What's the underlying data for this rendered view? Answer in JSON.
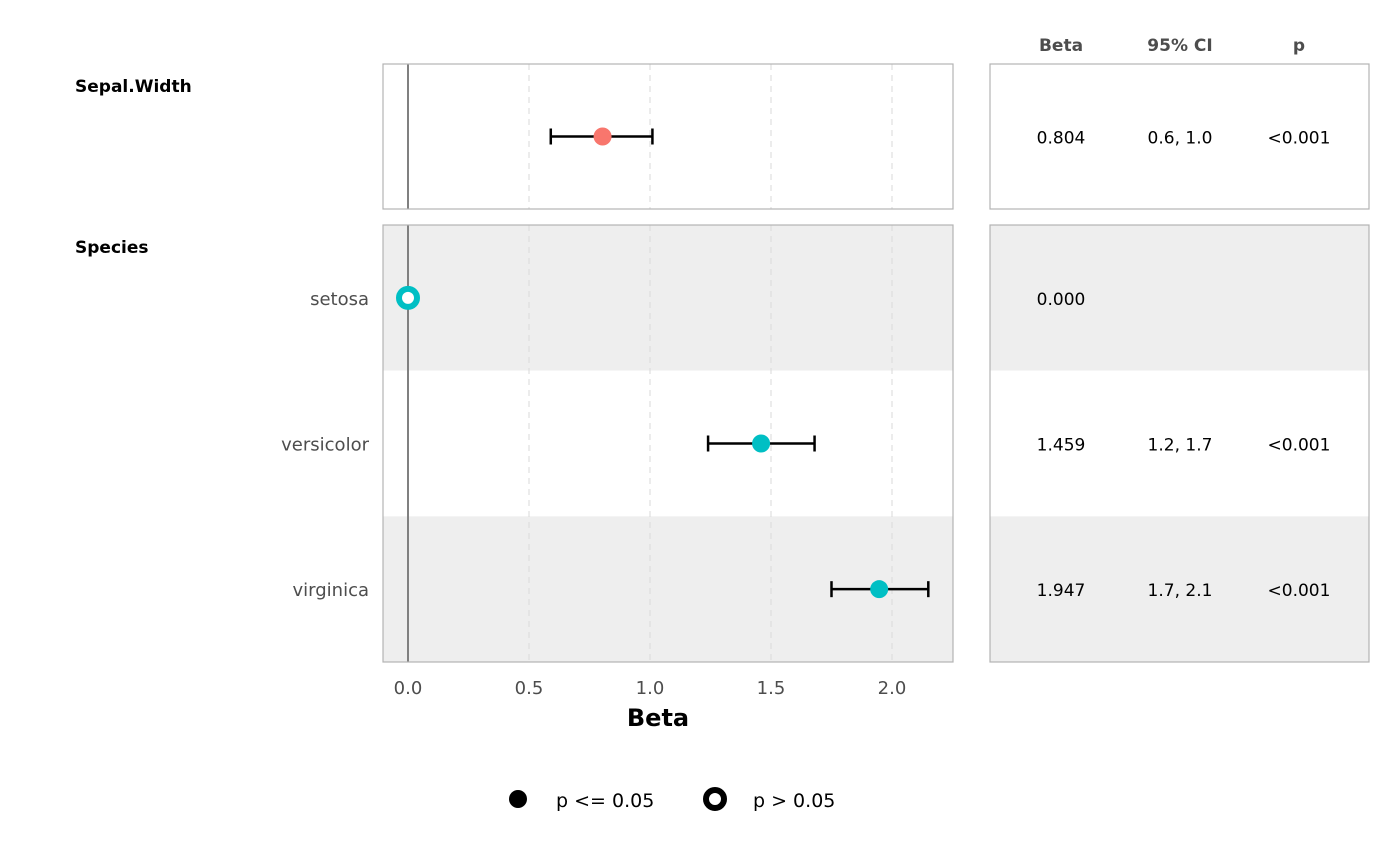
{
  "chart_data": {
    "type": "forest",
    "xlabel": "Beta",
    "xlim": [
      -0.1,
      2.25
    ],
    "xticks": [
      0.0,
      0.5,
      1.0,
      1.5,
      2.0
    ],
    "xtick_labels": [
      "0.0",
      "0.5",
      "1.0",
      "1.5",
      "2.0"
    ],
    "reference_line": 0,
    "grid": "vertical dashed",
    "colors": {
      "Sepal.Width": "#F8766D",
      "Species": "#00BFC4",
      "stripe": "#EEEEEE",
      "border": "#B3B3B3"
    },
    "groups": [
      {
        "name": "Sepal.Width",
        "rows": [
          {
            "label": "",
            "beta": 0.804,
            "ci_low": 0.59,
            "ci_high": 1.01,
            "beta_text": "0.804",
            "ci_text": "0.6, 1.0",
            "p_text": "<0.001",
            "significant": true
          }
        ]
      },
      {
        "name": "Species",
        "rows": [
          {
            "label": "setosa",
            "beta": 0.0,
            "ci_low": null,
            "ci_high": null,
            "beta_text": "0.000",
            "ci_text": "",
            "p_text": "",
            "significant": false
          },
          {
            "label": "versicolor",
            "beta": 1.459,
            "ci_low": 1.24,
            "ci_high": 1.68,
            "beta_text": "1.459",
            "ci_text": "1.2, 1.7",
            "p_text": "<0.001",
            "significant": true
          },
          {
            "label": "virginica",
            "beta": 1.947,
            "ci_low": 1.75,
            "ci_high": 2.15,
            "beta_text": "1.947",
            "ci_text": "1.7, 2.1",
            "p_text": "<0.001",
            "significant": true
          }
        ]
      }
    ],
    "table_headers": [
      "Beta",
      "95% CI",
      "p"
    ],
    "legend": {
      "position": "bottom",
      "items": [
        "p <= 0.05",
        "p > 0.05"
      ]
    }
  }
}
